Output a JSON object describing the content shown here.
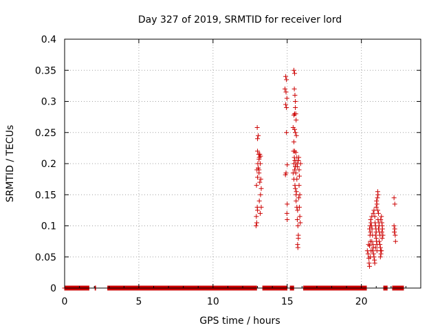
{
  "chart_data": {
    "type": "scatter",
    "title": "Day 327 of 2019, SRMTID for receiver lord",
    "xlabel": "GPS time / hours",
    "ylabel": "SRMTID / TECUs",
    "xlim": [
      0,
      24
    ],
    "ylim": [
      0,
      0.4
    ],
    "xticks": [
      "0",
      "5",
      "10",
      "15",
      "20"
    ],
    "yticks": [
      "0",
      "0.05",
      "0.1",
      "0.15",
      "0.2",
      "0.25",
      "0.3",
      "0.35",
      "0.4"
    ],
    "grid": true,
    "marker": "plus",
    "color": "#cc0000",
    "zero_segments": [
      [
        0.0,
        1.65
      ],
      [
        2.05,
        2.1
      ],
      [
        2.9,
        12.95
      ],
      [
        13.35,
        15.0
      ],
      [
        15.2,
        15.45
      ],
      [
        16.1,
        20.35
      ],
      [
        21.5,
        21.75
      ],
      [
        22.1,
        22.85
      ]
    ],
    "points": [
      [
        12.9,
        0.1
      ],
      [
        12.95,
        0.105
      ],
      [
        12.92,
        0.115
      ],
      [
        13.0,
        0.125
      ],
      [
        12.98,
        0.13
      ],
      [
        12.93,
        0.165
      ],
      [
        13.0,
        0.178
      ],
      [
        12.96,
        0.19
      ],
      [
        13.05,
        0.193
      ],
      [
        13.02,
        0.2
      ],
      [
        13.1,
        0.207
      ],
      [
        13.0,
        0.22
      ],
      [
        13.08,
        0.215
      ],
      [
        13.12,
        0.21
      ],
      [
        13.0,
        0.24
      ],
      [
        13.05,
        0.245
      ],
      [
        12.98,
        0.258
      ],
      [
        13.15,
        0.215
      ],
      [
        13.2,
        0.212
      ],
      [
        13.18,
        0.2
      ],
      [
        13.1,
        0.19
      ],
      [
        13.22,
        0.175
      ],
      [
        13.15,
        0.17
      ],
      [
        13.25,
        0.16
      ],
      [
        13.2,
        0.15
      ],
      [
        13.12,
        0.14
      ],
      [
        13.25,
        0.13
      ],
      [
        13.18,
        0.12
      ],
      [
        13.1,
        0.185
      ],
      [
        14.85,
        0.32
      ],
      [
        14.9,
        0.34
      ],
      [
        14.95,
        0.335
      ],
      [
        14.92,
        0.315
      ],
      [
        14.98,
        0.305
      ],
      [
        14.9,
        0.295
      ],
      [
        14.95,
        0.29
      ],
      [
        14.95,
        0.25
      ],
      [
        15.0,
        0.198
      ],
      [
        14.92,
        0.185
      ],
      [
        14.88,
        0.182
      ],
      [
        15.0,
        0.135
      ],
      [
        14.98,
        0.12
      ],
      [
        15.0,
        0.11
      ],
      [
        15.45,
        0.35
      ],
      [
        15.5,
        0.345
      ],
      [
        15.48,
        0.32
      ],
      [
        15.52,
        0.31
      ],
      [
        15.55,
        0.3
      ],
      [
        15.5,
        0.28
      ],
      [
        15.55,
        0.29
      ],
      [
        15.45,
        0.278
      ],
      [
        15.58,
        0.28
      ],
      [
        15.6,
        0.27
      ],
      [
        15.4,
        0.258
      ],
      [
        15.5,
        0.255
      ],
      [
        15.55,
        0.25
      ],
      [
        15.62,
        0.245
      ],
      [
        15.45,
        0.235
      ],
      [
        15.5,
        0.22
      ],
      [
        15.42,
        0.22
      ],
      [
        15.58,
        0.218
      ],
      [
        15.48,
        0.21
      ],
      [
        15.52,
        0.205
      ],
      [
        15.45,
        0.2
      ],
      [
        15.55,
        0.195
      ],
      [
        15.5,
        0.19
      ],
      [
        15.58,
        0.185
      ],
      [
        15.45,
        0.175
      ],
      [
        15.52,
        0.165
      ],
      [
        15.55,
        0.16
      ],
      [
        15.62,
        0.155
      ],
      [
        15.6,
        0.15
      ],
      [
        15.6,
        0.14
      ],
      [
        15.65,
        0.13
      ],
      [
        15.7,
        0.125
      ],
      [
        15.68,
        0.11
      ],
      [
        15.72,
        0.1
      ],
      [
        15.75,
        0.085
      ],
      [
        15.7,
        0.07
      ],
      [
        15.72,
        0.065
      ],
      [
        15.75,
        0.08
      ],
      [
        15.6,
        0.2
      ],
      [
        15.65,
        0.21
      ],
      [
        15.68,
        0.195
      ],
      [
        15.7,
        0.2
      ],
      [
        15.75,
        0.205
      ],
      [
        15.78,
        0.21
      ],
      [
        15.8,
        0.19
      ],
      [
        15.82,
        0.18
      ],
      [
        15.8,
        0.165
      ],
      [
        15.85,
        0.15
      ],
      [
        15.82,
        0.13
      ],
      [
        15.85,
        0.115
      ],
      [
        15.88,
        0.105
      ],
      [
        15.9,
        0.2
      ],
      [
        15.78,
        0.145
      ],
      [
        15.65,
        0.175
      ],
      [
        15.4,
        0.185
      ],
      [
        20.4,
        0.06
      ],
      [
        20.45,
        0.055
      ],
      [
        20.5,
        0.048
      ],
      [
        20.52,
        0.04
      ],
      [
        20.55,
        0.035
      ],
      [
        20.48,
        0.07
      ],
      [
        20.55,
        0.068
      ],
      [
        20.6,
        0.075
      ],
      [
        20.58,
        0.085
      ],
      [
        20.62,
        0.09
      ],
      [
        20.55,
        0.095
      ],
      [
        20.6,
        0.1
      ],
      [
        20.65,
        0.105
      ],
      [
        20.62,
        0.11
      ],
      [
        20.7,
        0.115
      ],
      [
        20.68,
        0.1
      ],
      [
        20.72,
        0.095
      ],
      [
        20.75,
        0.085
      ],
      [
        20.7,
        0.075
      ],
      [
        20.78,
        0.07
      ],
      [
        20.8,
        0.065
      ],
      [
        20.75,
        0.06
      ],
      [
        20.82,
        0.055
      ],
      [
        20.85,
        0.05
      ],
      [
        20.88,
        0.045
      ],
      [
        20.9,
        0.04
      ],
      [
        20.8,
        0.12
      ],
      [
        20.85,
        0.125
      ],
      [
        20.9,
        0.115
      ],
      [
        20.92,
        0.105
      ],
      [
        20.95,
        0.1
      ],
      [
        20.98,
        0.095
      ],
      [
        21.0,
        0.09
      ],
      [
        20.95,
        0.085
      ],
      [
        21.0,
        0.08
      ],
      [
        21.02,
        0.075
      ],
      [
        21.05,
        0.07
      ],
      [
        21.0,
        0.13
      ],
      [
        21.05,
        0.135
      ],
      [
        21.02,
        0.14
      ],
      [
        21.08,
        0.145
      ],
      [
        21.1,
        0.155
      ],
      [
        21.12,
        0.15
      ],
      [
        21.1,
        0.125
      ],
      [
        21.15,
        0.12
      ],
      [
        21.12,
        0.11
      ],
      [
        21.18,
        0.105
      ],
      [
        21.2,
        0.1
      ],
      [
        21.15,
        0.095
      ],
      [
        21.22,
        0.09
      ],
      [
        21.25,
        0.085
      ],
      [
        21.2,
        0.075
      ],
      [
        21.25,
        0.07
      ],
      [
        21.28,
        0.065
      ],
      [
        21.3,
        0.06
      ],
      [
        21.32,
        0.055
      ],
      [
        21.28,
        0.05
      ],
      [
        21.35,
        0.06
      ],
      [
        21.3,
        0.11
      ],
      [
        21.35,
        0.115
      ],
      [
        21.38,
        0.105
      ],
      [
        21.4,
        0.1
      ],
      [
        21.42,
        0.095
      ],
      [
        21.38,
        0.09
      ],
      [
        21.45,
        0.085
      ],
      [
        21.4,
        0.08
      ],
      [
        21.05,
        0.06
      ],
      [
        20.65,
        0.06
      ],
      [
        20.6,
        0.05
      ],
      [
        20.95,
        0.065
      ],
      [
        22.2,
        0.145
      ],
      [
        22.25,
        0.135
      ],
      [
        22.2,
        0.1
      ],
      [
        22.25,
        0.095
      ],
      [
        22.22,
        0.09
      ],
      [
        22.28,
        0.085
      ],
      [
        22.3,
        0.075
      ]
    ]
  }
}
